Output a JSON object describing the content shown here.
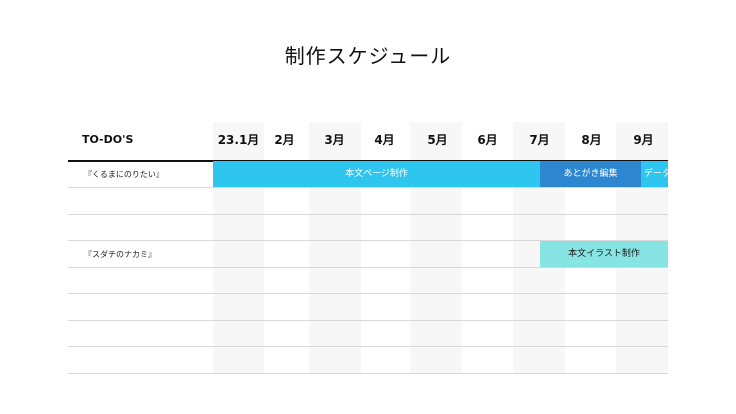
{
  "slide": {
    "title": "制作スケジュール"
  },
  "table": {
    "todo_header": "TO-DO'S",
    "months": [
      "23.1月",
      "2月",
      "3月",
      "4月",
      "5月",
      "6月",
      "7月",
      "8月",
      "9月"
    ],
    "rows": [
      {
        "label": "『くるまにのりたい』"
      },
      {
        "label": ""
      },
      {
        "label": ""
      },
      {
        "label": "『スダチのナカミ』"
      },
      {
        "label": ""
      },
      {
        "label": ""
      },
      {
        "label": ""
      }
    ]
  },
  "tasks": [
    {
      "label": "本文ページ制作",
      "color": "#2ec6ef"
    },
    {
      "label": "あとがき編集",
      "color": "#2d86d0"
    },
    {
      "label": "データ",
      "color": "#2ec6ef"
    },
    {
      "label": "本文イラスト制作",
      "color": "#86e4e2"
    }
  ]
}
